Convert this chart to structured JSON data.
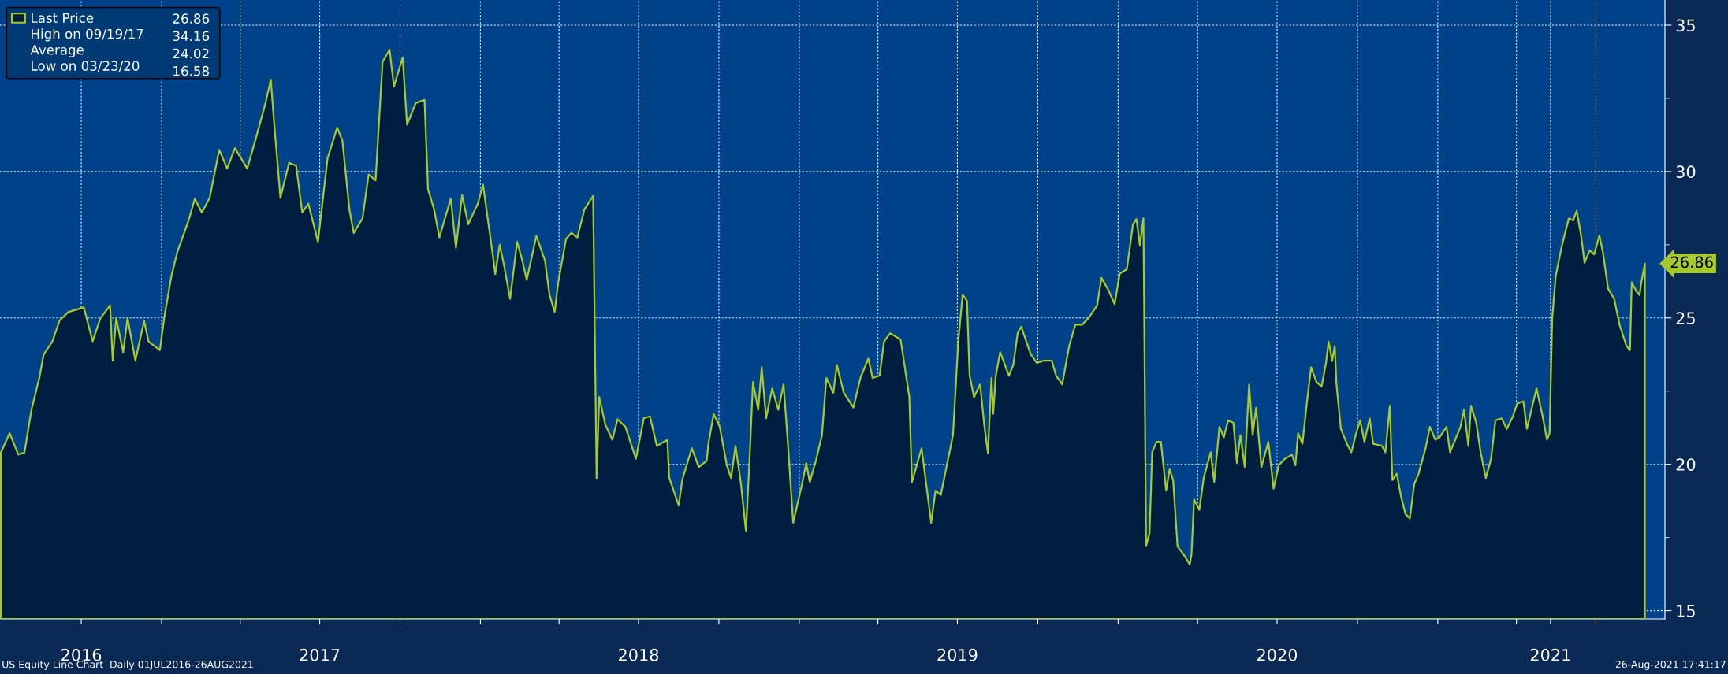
{
  "chart_data": {
    "type": "area",
    "series": [
      {
        "name": "Last Price",
        "color": "#a8c92b",
        "x": [
          "2016-07-01",
          "2016-07-11",
          "2016-07-21",
          "2016-07-28",
          "2016-08-05",
          "2016-08-14",
          "2016-08-19",
          "2016-08-29",
          "2016-09-06",
          "2016-09-16",
          "2016-10-04",
          "2016-10-14",
          "2016-10-23",
          "2016-11-03",
          "2016-11-06",
          "2016-11-10",
          "2016-11-18",
          "2016-11-23",
          "2016-12-02",
          "2016-12-12",
          "2016-12-17",
          "2016-12-30",
          "2017-01-04",
          "2017-01-12",
          "2017-01-19",
          "2017-02-01",
          "2017-02-08",
          "2017-02-16",
          "2017-02-25",
          "2017-03-08",
          "2017-03-17",
          "2017-03-26",
          "2017-04-09",
          "2017-04-20",
          "2017-04-30",
          "2017-05-06",
          "2017-05-10",
          "2017-05-17",
          "2017-05-27",
          "2017-06-04",
          "2017-06-11",
          "2017-06-18",
          "2017-06-29",
          "2017-07-10",
          "2017-07-21",
          "2017-07-27",
          "2017-08-04",
          "2017-08-09",
          "2017-08-19",
          "2017-08-26",
          "2017-09-03",
          "2017-09-11",
          "2017-09-19",
          "2017-09-24",
          "2017-10-04",
          "2017-10-09",
          "2017-10-19",
          "2017-10-29",
          "2017-11-02",
          "2017-11-09",
          "2017-11-15",
          "2017-11-28",
          "2017-12-04",
          "2017-12-11",
          "2017-12-18",
          "2017-12-29",
          "2018-01-04",
          "2018-01-14",
          "2018-01-18",
          "2018-01-23",
          "2018-01-28",
          "2018-02-04",
          "2018-02-12",
          "2018-02-18",
          "2018-02-23",
          "2018-03-06",
          "2018-03-16",
          "2018-03-21",
          "2018-03-27",
          "2018-03-31",
          "2018-04-09",
          "2018-04-15",
          "2018-04-22",
          "2018-04-30",
          "2018-05-10",
          "2018-05-14",
          "2018-05-17",
          "2018-05-24",
          "2018-06-01",
          "2018-06-07",
          "2018-06-16",
          "2018-06-28",
          "2018-07-07",
          "2018-07-14",
          "2018-07-22",
          "2018-08-03",
          "2018-08-05",
          "2018-08-16",
          "2018-08-20",
          "2018-08-31",
          "2018-09-08",
          "2018-09-17",
          "2018-09-19",
          "2018-09-25",
          "2018-10-02",
          "2018-10-10",
          "2018-10-15",
          "2018-10-20",
          "2018-10-26",
          "2018-11-01",
          "2018-11-05",
          "2018-11-09",
          "2018-11-15",
          "2018-11-19",
          "2018-11-24",
          "2018-12-01",
          "2018-12-08",
          "2018-12-14",
          "2018-12-19",
          "2018-12-25",
          "2019-01-04",
          "2019-01-09",
          "2019-01-13",
          "2019-01-20",
          "2019-01-27",
          "2019-02-01",
          "2019-02-09",
          "2019-02-13",
          "2019-02-21",
          "2019-03-04",
          "2019-03-12",
          "2019-03-21",
          "2019-03-26",
          "2019-04-03",
          "2019-04-08",
          "2019-04-15",
          "2019-04-27",
          "2019-05-07",
          "2019-05-10",
          "2019-05-21",
          "2019-06-01",
          "2019-06-06",
          "2019-06-12",
          "2019-06-20",
          "2019-06-26",
          "2019-07-02",
          "2019-07-07",
          "2019-07-12",
          "2019-07-15",
          "2019-07-20",
          "2019-07-27",
          "2019-08-01",
          "2019-08-05",
          "2019-08-09",
          "2019-08-11",
          "2019-08-14",
          "2019-08-19",
          "2019-08-29",
          "2019-09-03",
          "2019-09-08",
          "2019-09-12",
          "2019-09-23",
          "2019-09-30",
          "2019-10-08",
          "2019-10-17",
          "2019-10-22",
          "2019-10-29",
          "2019-11-06",
          "2019-11-13",
          "2019-11-21",
          "2019-11-28",
          "2019-12-08",
          "2019-12-13",
          "2019-12-21",
          "2019-12-28",
          "2020-01-03",
          "2020-01-11",
          "2020-01-18",
          "2020-01-22",
          "2020-01-26",
          "2020-01-30",
          "2020-02-02",
          "2020-02-06",
          "2020-02-09",
          "2020-02-14",
          "2020-02-19",
          "2020-02-25",
          "2020-02-29",
          "2020-03-04",
          "2020-03-09",
          "2020-03-16",
          "2020-03-23",
          "2020-03-25",
          "2020-03-28",
          "2020-04-03",
          "2020-04-08",
          "2020-04-16",
          "2020-04-20",
          "2020-04-26",
          "2020-05-01",
          "2020-05-06",
          "2020-05-12",
          "2020-05-16",
          "2020-05-20",
          "2020-05-25",
          "2020-05-30",
          "2020-06-03",
          "2020-06-07",
          "2020-06-13",
          "2020-06-21",
          "2020-06-27",
          "2020-07-03",
          "2020-07-10",
          "2020-07-18",
          "2020-07-22",
          "2020-07-25",
          "2020-07-30",
          "2020-08-04",
          "2020-08-09",
          "2020-08-15",
          "2020-08-21",
          "2020-08-26",
          "2020-08-29",
          "2020-09-02",
          "2020-09-05",
          "2020-09-07",
          "2020-09-12",
          "2020-09-19",
          "2020-09-24",
          "2020-09-29",
          "2020-10-04",
          "2020-10-09",
          "2020-10-15",
          "2020-10-19",
          "2020-10-29",
          "2020-11-02",
          "2020-11-07",
          "2020-11-10",
          "2020-11-15",
          "2020-11-20",
          "2020-11-25",
          "2020-11-30",
          "2020-12-05",
          "2020-12-10",
          "2020-12-18",
          "2020-12-23",
          "2020-12-29",
          "2021-01-03",
          "2021-01-11",
          "2021-01-15",
          "2021-01-22",
          "2021-01-27",
          "2021-01-31",
          "2021-02-05",
          "2021-02-08",
          "2021-02-14",
          "2021-02-19",
          "2021-02-25",
          "2021-03-03",
          "2021-03-08",
          "2021-03-15",
          "2021-03-21",
          "2021-03-28",
          "2021-04-02",
          "2021-04-09",
          "2021-04-13",
          "2021-04-24",
          "2021-05-01",
          "2021-05-06",
          "2021-05-09",
          "2021-05-12",
          "2021-05-16",
          "2021-05-23",
          "2021-05-31",
          "2021-06-05",
          "2021-06-09",
          "2021-06-14",
          "2021-06-18",
          "2021-06-24",
          "2021-06-29",
          "2021-07-05",
          "2021-07-09",
          "2021-07-15",
          "2021-07-22",
          "2021-07-28",
          "2021-08-05",
          "2021-08-09",
          "2021-08-11",
          "2021-08-16",
          "2021-08-20",
          "2021-08-22",
          "2021-08-26"
        ],
        "values": [
          20.4,
          21.06,
          20.33,
          20.4,
          21.86,
          22.95,
          23.75,
          24.2,
          24.9,
          25.2,
          25.36,
          24.2,
          24.99,
          25.43,
          23.54,
          25.0,
          23.83,
          25.0,
          23.54,
          24.9,
          24.2,
          23.9,
          25.0,
          26.4,
          27.25,
          28.34,
          29.07,
          28.6,
          29.1,
          30.74,
          30.1,
          30.8,
          30.1,
          31.25,
          32.34,
          33.14,
          31.6,
          29.1,
          30.3,
          30.2,
          28.6,
          28.9,
          27.6,
          30.45,
          31.5,
          31.05,
          28.7,
          27.9,
          28.4,
          29.9,
          29.7,
          33.75,
          34.16,
          32.9,
          33.9,
          31.6,
          32.34,
          32.45,
          29.4,
          28.7,
          27.75,
          29.07,
          27.4,
          29.2,
          28.2,
          28.9,
          29.55,
          27.4,
          26.5,
          27.5,
          26.8,
          25.65,
          27.6,
          26.95,
          26.3,
          27.8,
          26.95,
          25.8,
          25.2,
          26.2,
          27.7,
          27.9,
          27.75,
          28.7,
          29.17,
          19.53,
          22.3,
          21.35,
          20.84,
          21.54,
          21.28,
          20.19,
          21.57,
          21.64,
          20.63,
          20.84,
          19.56,
          18.59,
          19.46,
          20.55,
          19.9,
          20.12,
          20.7,
          21.72,
          21.28,
          19.97,
          19.53,
          20.63,
          19.39,
          17.71,
          20.12,
          22.81,
          21.86,
          23.32,
          21.57,
          22.59,
          21.86,
          22.73,
          20.7,
          18.0,
          19.3,
          20.04,
          19.39,
          20.12,
          21.0,
          22.95,
          22.44,
          23.39,
          22.44,
          21.94,
          22.95,
          23.61,
          22.95,
          23.03,
          24.19,
          24.48,
          24.26,
          22.3,
          19.39,
          20.55,
          18.0,
          19.1,
          18.95,
          20.12,
          21.0,
          24.19,
          25.79,
          25.58,
          23.03,
          22.3,
          22.73,
          21.28,
          20.38,
          22.95,
          21.72,
          23.03,
          23.83,
          23.03,
          23.39,
          24.48,
          24.7,
          23.76,
          23.46,
          23.54,
          23.54,
          23.03,
          22.73,
          24.04,
          24.77,
          24.77,
          24.99,
          25.43,
          26.37,
          25.94,
          25.47,
          26.52,
          26.66,
          28.19,
          28.38,
          27.47,
          28.41,
          17.2,
          17.64,
          20.41,
          20.77,
          20.77,
          19.1,
          19.83,
          19.46,
          17.2,
          16.92,
          16.58,
          16.92,
          18.8,
          18.44,
          19.53,
          20.41,
          19.39,
          21.28,
          20.92,
          21.5,
          21.42,
          20.04,
          21.0,
          19.9,
          22.73,
          21.0,
          21.94,
          19.9,
          20.77,
          19.17,
          19.97,
          20.19,
          20.33,
          19.97,
          21.06,
          20.7,
          22.08,
          23.32,
          22.81,
          22.66,
          23.46,
          24.19,
          23.53,
          24.04,
          22.73,
          21.21,
          20.7,
          20.41,
          21.0,
          21.5,
          20.77,
          21.57,
          20.7,
          20.63,
          20.41,
          22.0,
          19.46,
          19.68,
          18.88,
          18.3,
          18.15,
          19.32,
          19.68,
          20.55,
          21.28,
          20.84,
          20.92,
          21.28,
          20.41,
          20.92,
          21.28,
          21.86,
          20.63,
          22.0,
          21.42,
          20.41,
          19.53,
          20.19,
          21.5,
          21.57,
          21.21,
          21.64,
          22.08,
          22.15,
          21.21,
          22.59,
          21.64,
          20.84,
          21.06,
          24.99,
          26.44,
          27.46,
          28.4,
          28.33,
          28.66,
          27.82,
          26.88,
          27.31,
          27.17,
          27.82,
          27.24,
          26.0,
          25.64,
          24.77,
          24.04,
          23.9,
          26.22,
          25.93,
          25.78,
          26.22,
          26.86
        ]
      }
    ],
    "xlim": [
      "2016-06-30",
      "2021-09-18"
    ],
    "xticks": [
      {
        "value": "2016-10-01",
        "label": "2016"
      },
      {
        "value": "2017-01-01",
        "label": null
      },
      {
        "value": "2017-04-01",
        "label": null
      },
      {
        "value": "2017-07-01",
        "label": "2017"
      },
      {
        "value": "2017-10-01",
        "label": null
      },
      {
        "value": "2018-01-01",
        "label": null
      },
      {
        "value": "2018-04-01",
        "label": null
      },
      {
        "value": "2018-07-01",
        "label": "2018"
      },
      {
        "value": "2018-10-01",
        "label": null
      },
      {
        "value": "2019-01-01",
        "label": null
      },
      {
        "value": "2019-04-01",
        "label": null
      },
      {
        "value": "2019-07-01",
        "label": "2019"
      },
      {
        "value": "2019-10-01",
        "label": null
      },
      {
        "value": "2020-01-01",
        "label": null
      },
      {
        "value": "2020-04-01",
        "label": null
      },
      {
        "value": "2020-07-01",
        "label": "2020"
      },
      {
        "value": "2020-10-01",
        "label": null
      },
      {
        "value": "2021-01-01",
        "label": null
      },
      {
        "value": "2021-04-01",
        "label": null
      },
      {
        "value": "2021-05-10",
        "label": "2021"
      },
      {
        "value": "2021-07-01",
        "label": null
      }
    ],
    "ylim": [
      14.72,
      35.86
    ],
    "yticks": [
      15,
      20,
      25,
      30,
      35
    ],
    "grid": true,
    "legend": "top left",
    "annotations": [
      "26.86",
      "High on 09/19/17",
      "34.16",
      "Average",
      "24.02",
      "Low on 03/23/20",
      "16.58",
      {
        "text": "26.86",
        "x": "2021-08-26",
        "y": 26.86
      },
      "US Equity Line Chart  Daily 01JUL2016-26AUG2021",
      "26-Aug-2021 17:41:17"
    ]
  }
}
